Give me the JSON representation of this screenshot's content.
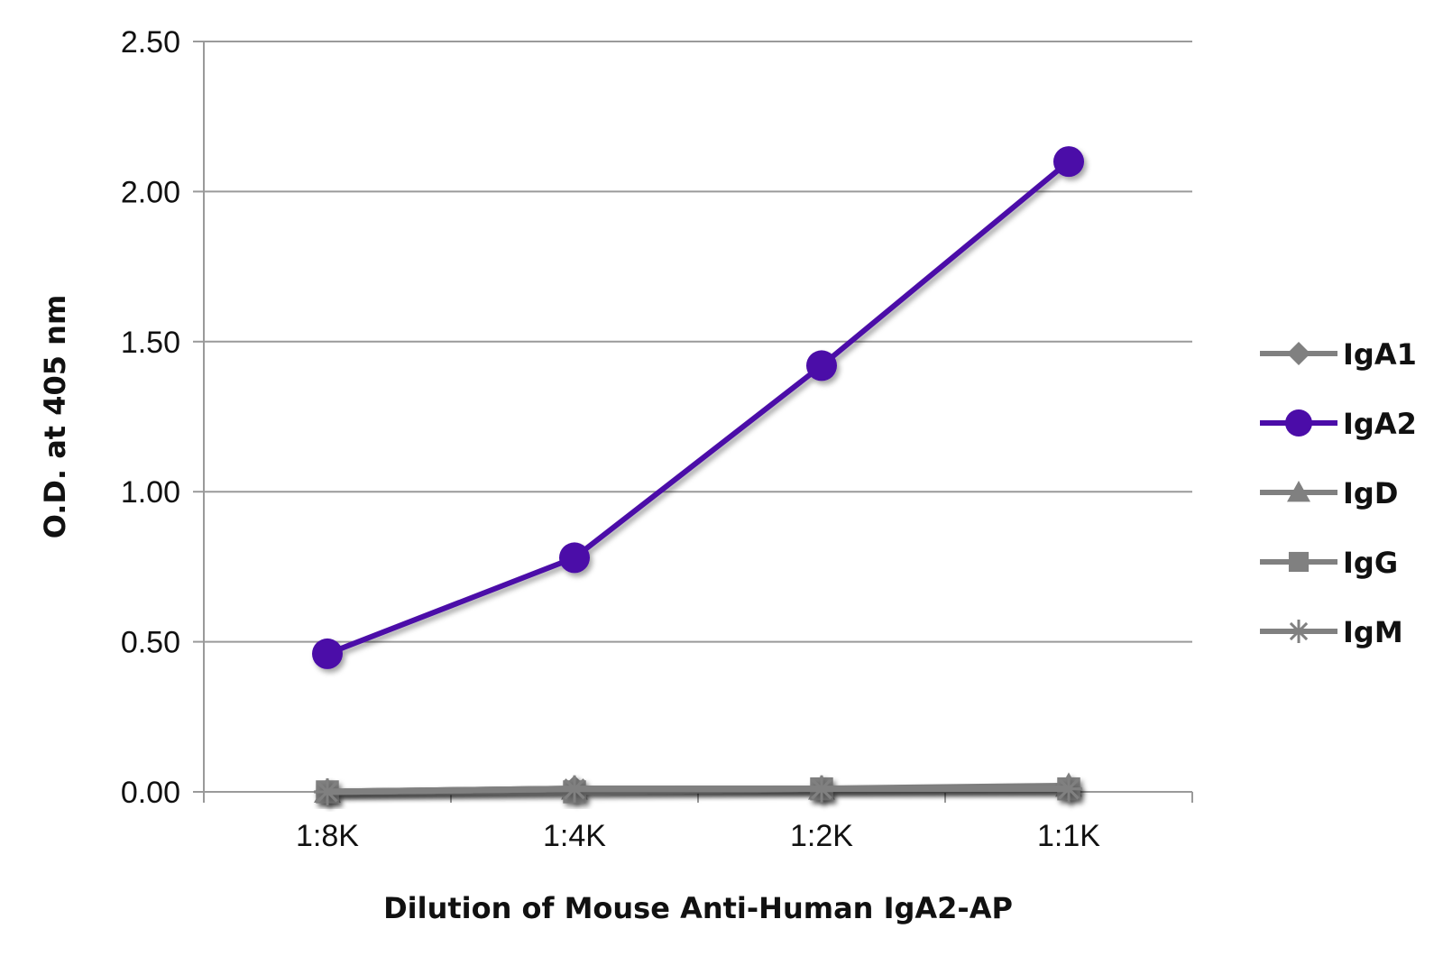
{
  "chart_data": {
    "type": "line",
    "categories": [
      "1:8K",
      "1:4K",
      "1:2K",
      "1:1K"
    ],
    "series": [
      {
        "name": "IgA1",
        "values": [
          0.0,
          0.01,
          0.01,
          0.01
        ],
        "color": "#808080",
        "marker": "diamond"
      },
      {
        "name": "IgA2",
        "values": [
          0.46,
          0.78,
          1.42,
          2.1
        ],
        "color": "#4b0ca8",
        "marker": "circle"
      },
      {
        "name": "IgD",
        "values": [
          0.0,
          0.01,
          0.01,
          0.02
        ],
        "color": "#808080",
        "marker": "triangle"
      },
      {
        "name": "IgG",
        "values": [
          0.0,
          0.0,
          0.01,
          0.01
        ],
        "color": "#808080",
        "marker": "square"
      },
      {
        "name": "IgM",
        "values": [
          0.0,
          0.01,
          0.01,
          0.01
        ],
        "color": "#808080",
        "marker": "star"
      }
    ],
    "ylim": [
      0,
      2.5
    ],
    "yticks": [
      "0.00",
      "0.50",
      "1.00",
      "1.50",
      "2.00",
      "2.50"
    ],
    "xlabel": "Dilution of Mouse Anti-Human IgA2-AP",
    "ylabel": "O.D. at 405 nm",
    "grid": true,
    "legend": "right"
  }
}
